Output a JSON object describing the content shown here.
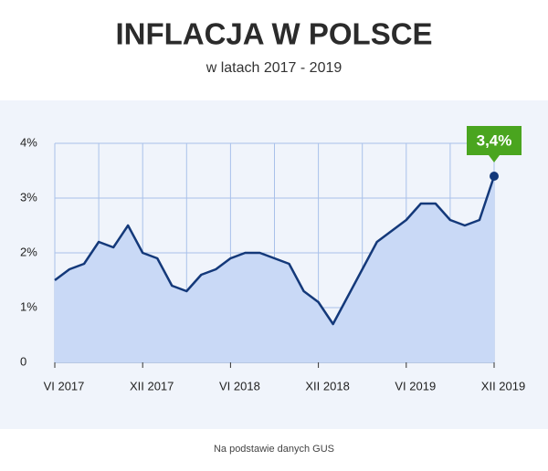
{
  "chart_data": {
    "type": "area",
    "title": "INFLACJA W POLSCE",
    "subtitle": "w latach 2017 - 2019",
    "source": "Na podstawie danych GUS",
    "categories": [
      "VI 2017",
      null,
      null,
      null,
      null,
      null,
      "XII 2017",
      null,
      null,
      null,
      null,
      null,
      "VI 2018",
      null,
      null,
      null,
      null,
      null,
      "XII 2018",
      null,
      null,
      null,
      null,
      null,
      "VI 2019",
      null,
      null,
      null,
      null,
      null,
      "XII 2019"
    ],
    "series": [
      {
        "name": "Inflacja",
        "color": "#14397a",
        "fill": "#c9d9f6",
        "values": [
          1.5,
          1.7,
          1.8,
          2.2,
          2.1,
          2.5,
          2.0,
          1.9,
          1.4,
          1.3,
          1.6,
          1.7,
          1.9,
          2.0,
          2.0,
          1.9,
          1.8,
          1.3,
          1.1,
          0.7,
          1.2,
          1.7,
          2.2,
          2.4,
          2.6,
          2.9,
          2.9,
          2.6,
          2.5,
          2.6,
          3.4
        ],
        "value_labels": [
          null,
          null,
          null,
          null,
          null,
          null,
          null,
          null,
          null,
          null,
          null,
          null,
          null,
          null,
          null,
          null,
          null,
          null,
          null,
          null,
          null,
          null,
          null,
          null,
          null,
          null,
          null,
          null,
          null,
          null,
          "3,4%"
        ]
      }
    ],
    "ylim": [
      0,
      4
    ],
    "yticks": [
      0,
      {
        "value": 1,
        "label": "1%"
      },
      {
        "value": 2,
        "label": "2%"
      },
      {
        "value": 3,
        "label": "3%"
      },
      {
        "value": 4,
        "label": "4%"
      }
    ],
    "grid": true
  }
}
